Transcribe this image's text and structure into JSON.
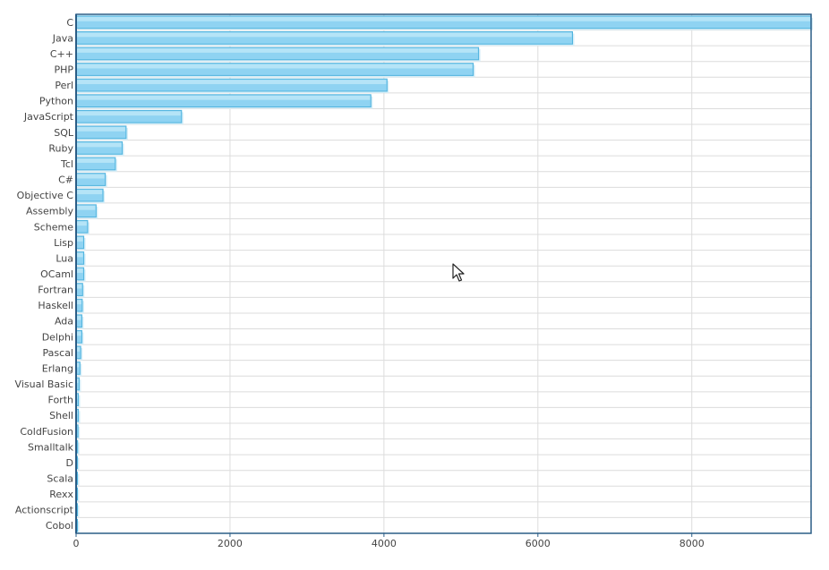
{
  "chart_data": {
    "type": "bar",
    "orientation": "horizontal",
    "categories": [
      "C",
      "Java",
      "C++",
      "PHP",
      "Perl",
      "Python",
      "JavaScript",
      "SQL",
      "Ruby",
      "Tcl",
      "C#",
      "Objective C",
      "Assembly",
      "Scheme",
      "Lisp",
      "Lua",
      "OCaml",
      "Fortran",
      "Haskell",
      "Ada",
      "Delphi",
      "Pascal",
      "Erlang",
      "Visual Basic",
      "Forth",
      "Shell",
      "ColdFusion",
      "Smalltalk",
      "D",
      "Scala",
      "Rexx",
      "Actionscript",
      "Cobol"
    ],
    "values": [
      9550,
      6450,
      5230,
      5160,
      4040,
      3830,
      1370,
      650,
      600,
      510,
      380,
      350,
      260,
      150,
      100,
      100,
      100,
      85,
      80,
      75,
      75,
      60,
      50,
      40,
      30,
      30,
      25,
      20,
      18,
      15,
      12,
      10,
      8
    ],
    "xticks": [
      "0",
      "2000",
      "4000",
      "6000",
      "8000"
    ],
    "xlim": [
      0,
      9550
    ],
    "title": "",
    "xlabel": "",
    "ylabel": "",
    "grid": true,
    "legend": "none",
    "colors": {
      "bar_fill": "#8fd3f2",
      "bar_stroke": "#4fb3de",
      "bar_highlight": "#c4ebfa",
      "bar_shadow": "#d6eef8",
      "axis": "#2a5d86",
      "grid": "#dcdcdc",
      "label": "#444444"
    }
  },
  "cursor": {
    "icon": "arrow-pointer-icon"
  }
}
